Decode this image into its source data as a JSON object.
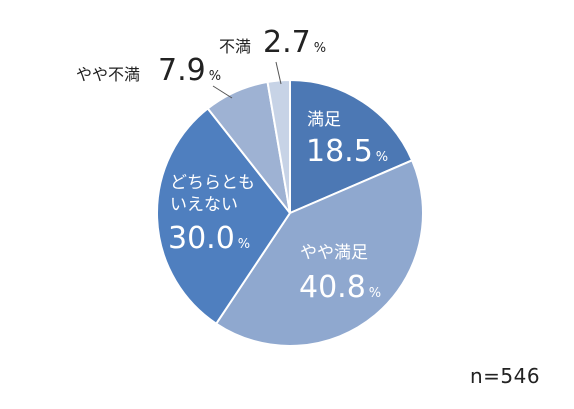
{
  "chart_data": {
    "type": "pie",
    "slices": [
      {
        "name": "満足",
        "value": 18.5,
        "value_label": "18.5",
        "color": "#4c78b4",
        "text_color": "#ffffff"
      },
      {
        "name": "やや満足",
        "value": 40.8,
        "value_label": "40.8",
        "color": "#8fa8cf",
        "text_color": "#ffffff"
      },
      {
        "name": "どちらとも\nいえない",
        "value": 30.0,
        "value_label": "30.0",
        "color": "#4f7fbf",
        "text_color": "#ffffff"
      },
      {
        "name": "やや不満",
        "value": 7.9,
        "value_label": "7.9",
        "color": "#9eb2d3",
        "text_color": "#222222"
      },
      {
        "name": "不満",
        "value": 2.7,
        "value_label": "2.7",
        "color": "#c7d3e6",
        "text_color": "#222222"
      }
    ],
    "unit": "%",
    "start_angle": "12 o'clock",
    "direction": "clockwise"
  },
  "sample_size": "n=546"
}
